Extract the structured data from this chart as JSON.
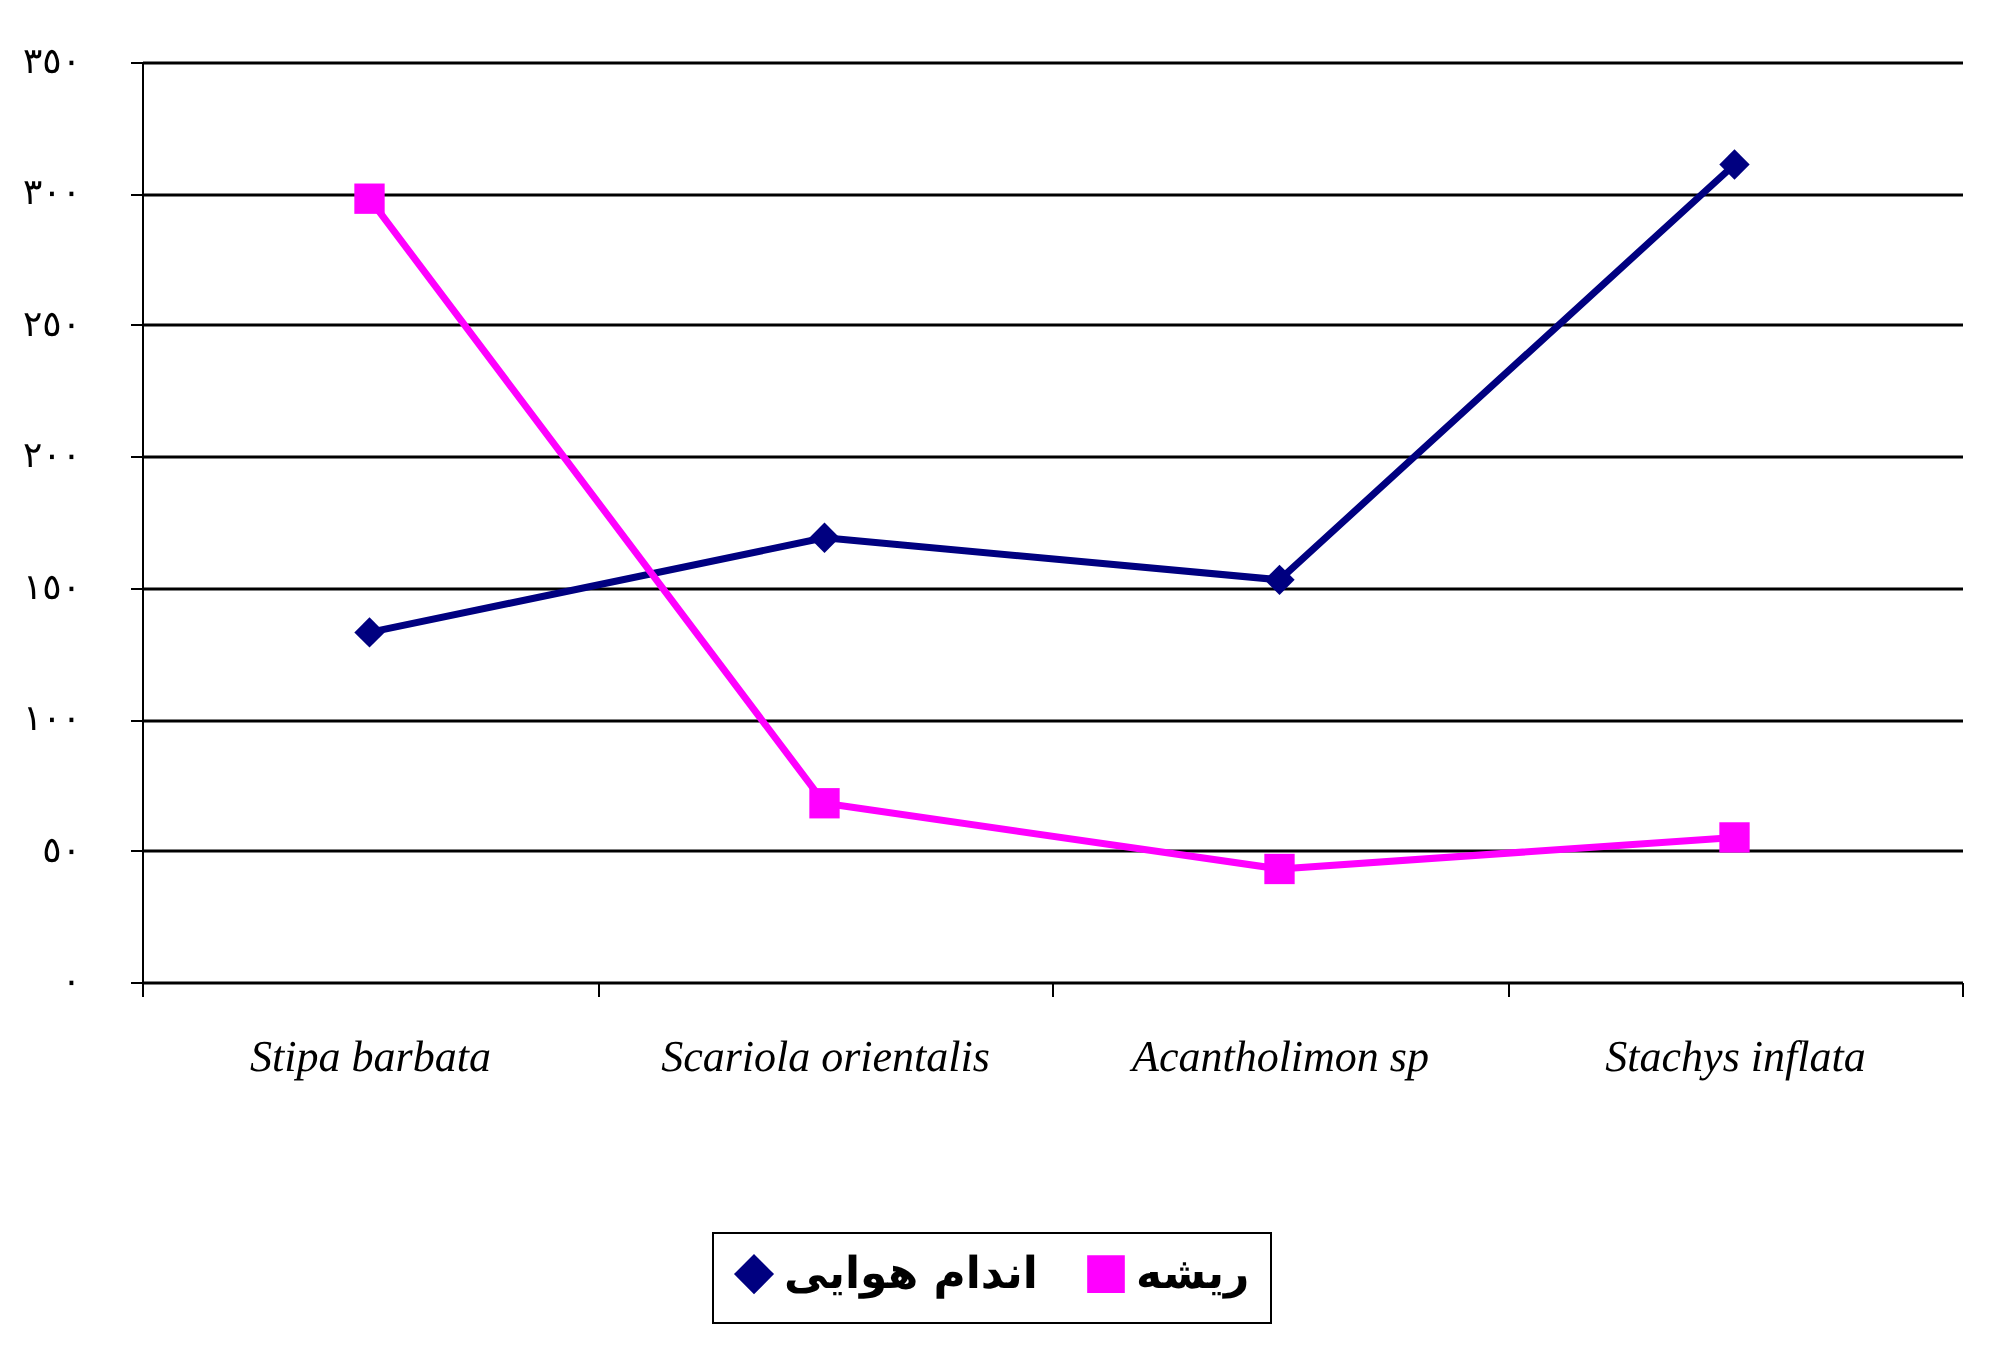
{
  "chart_data": {
    "type": "line",
    "categories": [
      "Stipa barbata",
      "Scariola orientalis",
      "Acantholimon sp",
      "Stachys inflata"
    ],
    "series": [
      {
        "name": "اندام هوایی",
        "color": "#000080",
        "marker": "diamond",
        "values": [
          133,
          169,
          153,
          311
        ]
      },
      {
        "name": "ریشه",
        "color": "#ff00ff",
        "marker": "square",
        "values": [
          298,
          68,
          43,
          55
        ]
      }
    ],
    "ylim": [
      0,
      350
    ],
    "yticks": [
      {
        "value": 0,
        "label": "٠"
      },
      {
        "value": 50,
        "label": "٥٠"
      },
      {
        "value": 100,
        "label": "١٠٠"
      },
      {
        "value": 150,
        "label": "١٥٠"
      },
      {
        "value": 200,
        "label": "٢٠٠"
      },
      {
        "value": 250,
        "label": "٢٥٠"
      },
      {
        "value": 300,
        "label": "٣٠٠"
      },
      {
        "value": 350,
        "label": "٣٥٠"
      }
    ],
    "grid": "y",
    "legend": "bottom"
  }
}
